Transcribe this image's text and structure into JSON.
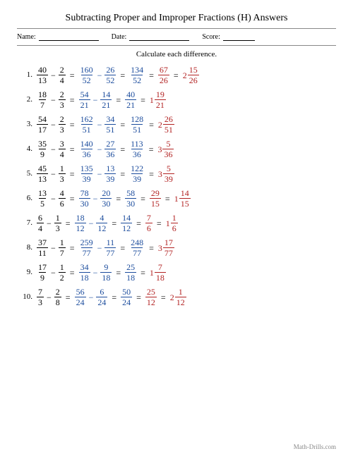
{
  "title": "Subtracting Proper and Improper Fractions (H) Answers",
  "labels": {
    "name": "Name:",
    "date": "Date:",
    "score": "Score:"
  },
  "instruction": "Calculate each difference.",
  "colors": {
    "step": "#1a4b9c",
    "result": "#b22222",
    "text": "#000"
  },
  "footer": "Math-Drills.com",
  "problems": [
    {
      "a": {
        "n": 40,
        "d": 13
      },
      "b": {
        "n": 2,
        "d": 4
      },
      "s1": {
        "n": 160,
        "d": 52
      },
      "s2": {
        "n": 26,
        "d": 52
      },
      "diff": {
        "n": 134,
        "d": 52
      },
      "simp": {
        "n": 67,
        "d": 26
      },
      "mixed": {
        "w": 2,
        "n": 15,
        "d": 26
      }
    },
    {
      "a": {
        "n": 18,
        "d": 7
      },
      "b": {
        "n": 2,
        "d": 3
      },
      "s1": {
        "n": 54,
        "d": 21
      },
      "s2": {
        "n": 14,
        "d": 21
      },
      "diff": {
        "n": 40,
        "d": 21
      },
      "mixed": {
        "w": 1,
        "n": 19,
        "d": 21
      }
    },
    {
      "a": {
        "n": 54,
        "d": 17
      },
      "b": {
        "n": 2,
        "d": 3
      },
      "s1": {
        "n": 162,
        "d": 51
      },
      "s2": {
        "n": 34,
        "d": 51
      },
      "diff": {
        "n": 128,
        "d": 51
      },
      "mixed": {
        "w": 2,
        "n": 26,
        "d": 51
      }
    },
    {
      "a": {
        "n": 35,
        "d": 9
      },
      "b": {
        "n": 3,
        "d": 4
      },
      "s1": {
        "n": 140,
        "d": 36
      },
      "s2": {
        "n": 27,
        "d": 36
      },
      "diff": {
        "n": 113,
        "d": 36
      },
      "mixed": {
        "w": 3,
        "n": 5,
        "d": 36
      }
    },
    {
      "a": {
        "n": 45,
        "d": 13
      },
      "b": {
        "n": 1,
        "d": 3
      },
      "s1": {
        "n": 135,
        "d": 39
      },
      "s2": {
        "n": 13,
        "d": 39
      },
      "diff": {
        "n": 122,
        "d": 39
      },
      "mixed": {
        "w": 3,
        "n": 5,
        "d": 39
      }
    },
    {
      "a": {
        "n": 13,
        "d": 5
      },
      "b": {
        "n": 4,
        "d": 6
      },
      "s1": {
        "n": 78,
        "d": 30
      },
      "s2": {
        "n": 20,
        "d": 30
      },
      "diff": {
        "n": 58,
        "d": 30
      },
      "simp": {
        "n": 29,
        "d": 15
      },
      "mixed": {
        "w": 1,
        "n": 14,
        "d": 15
      }
    },
    {
      "a": {
        "n": 6,
        "d": 4
      },
      "b": {
        "n": 1,
        "d": 3
      },
      "s1": {
        "n": 18,
        "d": 12
      },
      "s2": {
        "n": 4,
        "d": 12
      },
      "diff": {
        "n": 14,
        "d": 12
      },
      "simp": {
        "n": 7,
        "d": 6
      },
      "mixed": {
        "w": 1,
        "n": 1,
        "d": 6
      }
    },
    {
      "a": {
        "n": 37,
        "d": 11
      },
      "b": {
        "n": 1,
        "d": 7
      },
      "s1": {
        "n": 259,
        "d": 77
      },
      "s2": {
        "n": 11,
        "d": 77
      },
      "diff": {
        "n": 248,
        "d": 77
      },
      "mixed": {
        "w": 3,
        "n": 17,
        "d": 77
      }
    },
    {
      "a": {
        "n": 17,
        "d": 9
      },
      "b": {
        "n": 1,
        "d": 2
      },
      "s1": {
        "n": 34,
        "d": 18
      },
      "s2": {
        "n": 9,
        "d": 18
      },
      "diff": {
        "n": 25,
        "d": 18
      },
      "mixed": {
        "w": 1,
        "n": 7,
        "d": 18
      }
    },
    {
      "a": {
        "n": 7,
        "d": 3
      },
      "b": {
        "n": 2,
        "d": 8
      },
      "s1": {
        "n": 56,
        "d": 24
      },
      "s2": {
        "n": 6,
        "d": 24
      },
      "diff": {
        "n": 50,
        "d": 24
      },
      "simp": {
        "n": 25,
        "d": 12
      },
      "mixed": {
        "w": 2,
        "n": 1,
        "d": 12
      }
    }
  ]
}
